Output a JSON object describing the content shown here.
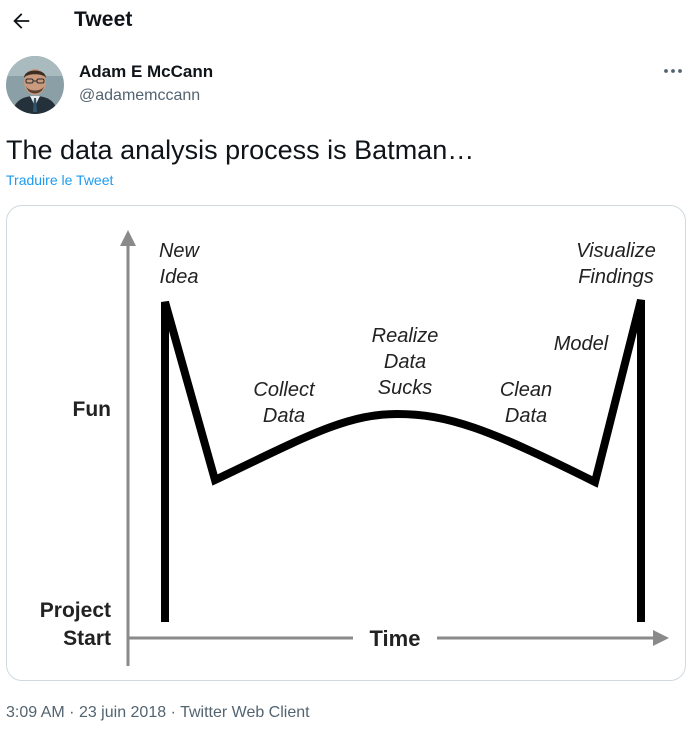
{
  "header": {
    "title": "Tweet",
    "back_icon": "arrow-left-icon"
  },
  "author": {
    "display_name": "Adam E McCann",
    "handle": "@adamemccann",
    "more_icon": "more-horizontal-icon"
  },
  "tweet": {
    "text": "The data analysis process is Batman…",
    "translate_label": "Traduire le Tweet",
    "accent_color": "#1d9bf0"
  },
  "meta": {
    "time": "3:09 AM",
    "separator": "·",
    "date": "23 juin 2018",
    "source": "Twitter Web Client"
  },
  "chart_data": {
    "type": "line",
    "title": "",
    "xlabel": "Time",
    "ylabel": "Fun",
    "y_origin_label": [
      "Project",
      "Start"
    ],
    "annotations": [
      {
        "label": [
          "New",
          "Idea"
        ]
      },
      {
        "label": [
          "Collect",
          "Data"
        ]
      },
      {
        "label": [
          "Realize",
          "Data",
          "Sucks"
        ]
      },
      {
        "label": [
          "Clean",
          "Data"
        ]
      },
      {
        "label": [
          "Model"
        ]
      },
      {
        "label": [
          "Visualize",
          "Findings"
        ]
      }
    ],
    "grid": false,
    "legend": "none"
  }
}
